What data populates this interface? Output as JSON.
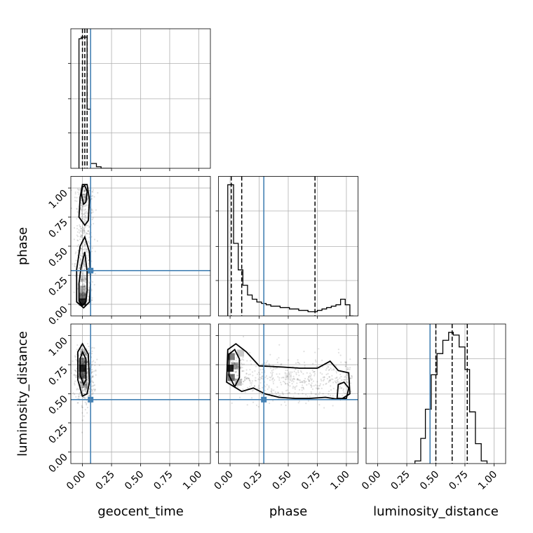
{
  "chart_data": {
    "type": "corner",
    "parameters": [
      "geocent_time",
      "phase",
      "luminosity_distance"
    ],
    "truth": {
      "geocent_time": 0.07,
      "phase": 0.29,
      "luminosity_distance": 0.45
    },
    "truth_color": "#4682b4",
    "grid": true,
    "ticks": {
      "geocent_time": [
        "0.00",
        "0.25",
        "0.50",
        "0.75",
        "1.00"
      ],
      "phase": [
        "0.00",
        "0.25",
        "0.50",
        "0.75",
        "1.00"
      ],
      "luminosity_distance": [
        "0.00",
        "0.25",
        "0.50",
        "0.75",
        "1.00"
      ]
    },
    "histograms": {
      "geocent_time": {
        "quantiles": [
          0.0,
          0.02,
          0.04
        ],
        "bins": [
          [
            -0.03,
            -0.01,
            0.81
          ],
          [
            -0.01,
            0.04,
            0.82
          ],
          [
            0.04,
            0.07,
            0.37
          ],
          [
            0.07,
            0.12,
            0.03
          ],
          [
            0.12,
            0.16,
            0.01
          ],
          [
            0.16,
            0.25,
            0.0
          ]
        ]
      },
      "phase": {
        "quantiles": [
          0.01,
          0.1,
          0.73
        ],
        "bins": [
          [
            -0.02,
            0.03,
            0.94
          ],
          [
            0.03,
            0.07,
            0.52
          ],
          [
            0.07,
            0.11,
            0.33
          ],
          [
            0.11,
            0.15,
            0.22
          ],
          [
            0.15,
            0.19,
            0.15
          ],
          [
            0.19,
            0.23,
            0.12
          ],
          [
            0.23,
            0.27,
            0.1
          ],
          [
            0.27,
            0.31,
            0.09
          ],
          [
            0.31,
            0.35,
            0.08
          ],
          [
            0.35,
            0.39,
            0.07
          ],
          [
            0.39,
            0.43,
            0.07
          ],
          [
            0.43,
            0.47,
            0.06
          ],
          [
            0.47,
            0.51,
            0.06
          ],
          [
            0.51,
            0.55,
            0.05
          ],
          [
            0.55,
            0.59,
            0.05
          ],
          [
            0.59,
            0.63,
            0.04
          ],
          [
            0.63,
            0.67,
            0.04
          ],
          [
            0.67,
            0.71,
            0.03
          ],
          [
            0.71,
            0.75,
            0.03
          ],
          [
            0.75,
            0.79,
            0.04
          ],
          [
            0.79,
            0.83,
            0.05
          ],
          [
            0.83,
            0.87,
            0.06
          ],
          [
            0.87,
            0.91,
            0.07
          ],
          [
            0.91,
            0.95,
            0.08
          ],
          [
            0.95,
            0.99,
            0.12
          ],
          [
            0.99,
            1.03,
            0.08
          ],
          [
            1.03,
            1.06,
            0.0
          ]
        ]
      },
      "luminosity_distance": {
        "quantiles": [
          0.5,
          0.64,
          0.77
        ],
        "bins": [
          [
            0.32,
            0.37,
            0.02
          ],
          [
            0.37,
            0.41,
            0.19
          ],
          [
            0.41,
            0.46,
            0.41
          ],
          [
            0.46,
            0.51,
            0.67
          ],
          [
            0.51,
            0.56,
            0.83
          ],
          [
            0.56,
            0.61,
            0.93
          ],
          [
            0.61,
            0.65,
            0.99
          ],
          [
            0.65,
            0.7,
            0.97
          ],
          [
            0.7,
            0.75,
            0.88
          ],
          [
            0.75,
            0.79,
            0.71
          ],
          [
            0.79,
            0.84,
            0.39
          ],
          [
            0.84,
            0.89,
            0.15
          ],
          [
            0.89,
            0.94,
            0.02
          ]
        ]
      }
    },
    "joint": [
      {
        "x": "geocent_time",
        "y": "phase",
        "density": [
          [
            0.0,
            0.02,
            1.0
          ],
          [
            0.0,
            0.07,
            0.65
          ],
          [
            0.0,
            0.13,
            0.35
          ],
          [
            0.0,
            0.22,
            0.2
          ],
          [
            0.0,
            0.35,
            0.12
          ],
          [
            0.02,
            0.92,
            0.18
          ]
        ],
        "contours": [
          [
            [
              -0.03,
              0.03
            ],
            [
              -0.03,
              0.18
            ],
            [
              -0.01,
              0.33
            ],
            [
              0.02,
              0.45
            ],
            [
              0.04,
              0.28
            ],
            [
              0.04,
              0.12
            ],
            [
              0.03,
              0.02
            ],
            [
              0.0,
              -0.01
            ],
            [
              -0.03,
              0.03
            ]
          ],
          [
            [
              -0.05,
              0.02
            ],
            [
              -0.05,
              0.3
            ],
            [
              -0.02,
              0.5
            ],
            [
              0.02,
              0.58
            ],
            [
              0.06,
              0.45
            ],
            [
              0.07,
              0.2
            ],
            [
              0.06,
              0.02
            ],
            [
              0.01,
              -0.03
            ],
            [
              -0.05,
              0.02
            ]
          ],
          [
            [
              -0.01,
              0.95
            ],
            [
              0.0,
              1.01
            ],
            [
              0.02,
              1.02
            ],
            [
              0.04,
              0.97
            ],
            [
              0.03,
              0.88
            ],
            [
              0.01,
              0.86
            ],
            [
              -0.01,
              0.95
            ]
          ],
          [
            [
              -0.03,
              0.75
            ],
            [
              -0.02,
              0.92
            ],
            [
              0.0,
              1.03
            ],
            [
              0.04,
              1.03
            ],
            [
              0.06,
              0.9
            ],
            [
              0.05,
              0.72
            ],
            [
              0.02,
              0.68
            ],
            [
              -0.03,
              0.75
            ]
          ]
        ]
      },
      {
        "x": "geocent_time",
        "y": "luminosity_distance",
        "density": [
          [
            0.0,
            0.72,
            1.0
          ],
          [
            0.0,
            0.66,
            0.6
          ],
          [
            0.0,
            0.78,
            0.55
          ],
          [
            0.01,
            0.58,
            0.3
          ],
          [
            0.01,
            0.86,
            0.25
          ]
        ],
        "contours": [
          [
            [
              -0.02,
              0.66
            ],
            [
              -0.02,
              0.8
            ],
            [
              0.0,
              0.86
            ],
            [
              0.03,
              0.8
            ],
            [
              0.03,
              0.62
            ],
            [
              0.01,
              0.58
            ],
            [
              -0.02,
              0.66
            ]
          ],
          [
            [
              -0.04,
              0.62
            ],
            [
              -0.04,
              0.86
            ],
            [
              0.0,
              0.93
            ],
            [
              0.05,
              0.84
            ],
            [
              0.06,
              0.6
            ],
            [
              0.04,
              0.5
            ],
            [
              0.0,
              0.48
            ],
            [
              -0.04,
              0.62
            ]
          ]
        ]
      },
      {
        "x": "phase",
        "y": "luminosity_distance",
        "density": [
          [
            0.0,
            0.72,
            1.0
          ],
          [
            0.01,
            0.64,
            0.65
          ],
          [
            0.01,
            0.82,
            0.6
          ],
          [
            0.04,
            0.74,
            0.45
          ],
          [
            0.07,
            0.6,
            0.3
          ],
          [
            0.09,
            0.85,
            0.25
          ],
          [
            0.5,
            0.65,
            0.08
          ]
        ],
        "contours": [
          [
            [
              -0.01,
              0.66
            ],
            [
              -0.01,
              0.84
            ],
            [
              0.04,
              0.88
            ],
            [
              0.08,
              0.8
            ],
            [
              0.08,
              0.64
            ],
            [
              0.04,
              0.56
            ],
            [
              -0.01,
              0.66
            ]
          ],
          [
            [
              -0.03,
              0.6
            ],
            [
              -0.02,
              0.88
            ],
            [
              0.05,
              0.93
            ],
            [
              0.14,
              0.86
            ],
            [
              0.25,
              0.74
            ],
            [
              0.45,
              0.73
            ],
            [
              0.6,
              0.72
            ],
            [
              0.75,
              0.72
            ],
            [
              0.86,
              0.78
            ],
            [
              0.93,
              0.7
            ],
            [
              1.02,
              0.68
            ],
            [
              1.03,
              0.5
            ],
            [
              0.95,
              0.45
            ],
            [
              0.82,
              0.47
            ],
            [
              0.68,
              0.46
            ],
            [
              0.56,
              0.46
            ],
            [
              0.42,
              0.47
            ],
            [
              0.3,
              0.5
            ],
            [
              0.2,
              0.55
            ],
            [
              0.1,
              0.52
            ],
            [
              -0.03,
              0.6
            ]
          ],
          [
            [
              0.92,
              0.46
            ],
            [
              0.93,
              0.58
            ],
            [
              0.98,
              0.6
            ],
            [
              1.02,
              0.55
            ],
            [
              1.0,
              0.46
            ],
            [
              0.92,
              0.46
            ]
          ]
        ]
      }
    ]
  }
}
